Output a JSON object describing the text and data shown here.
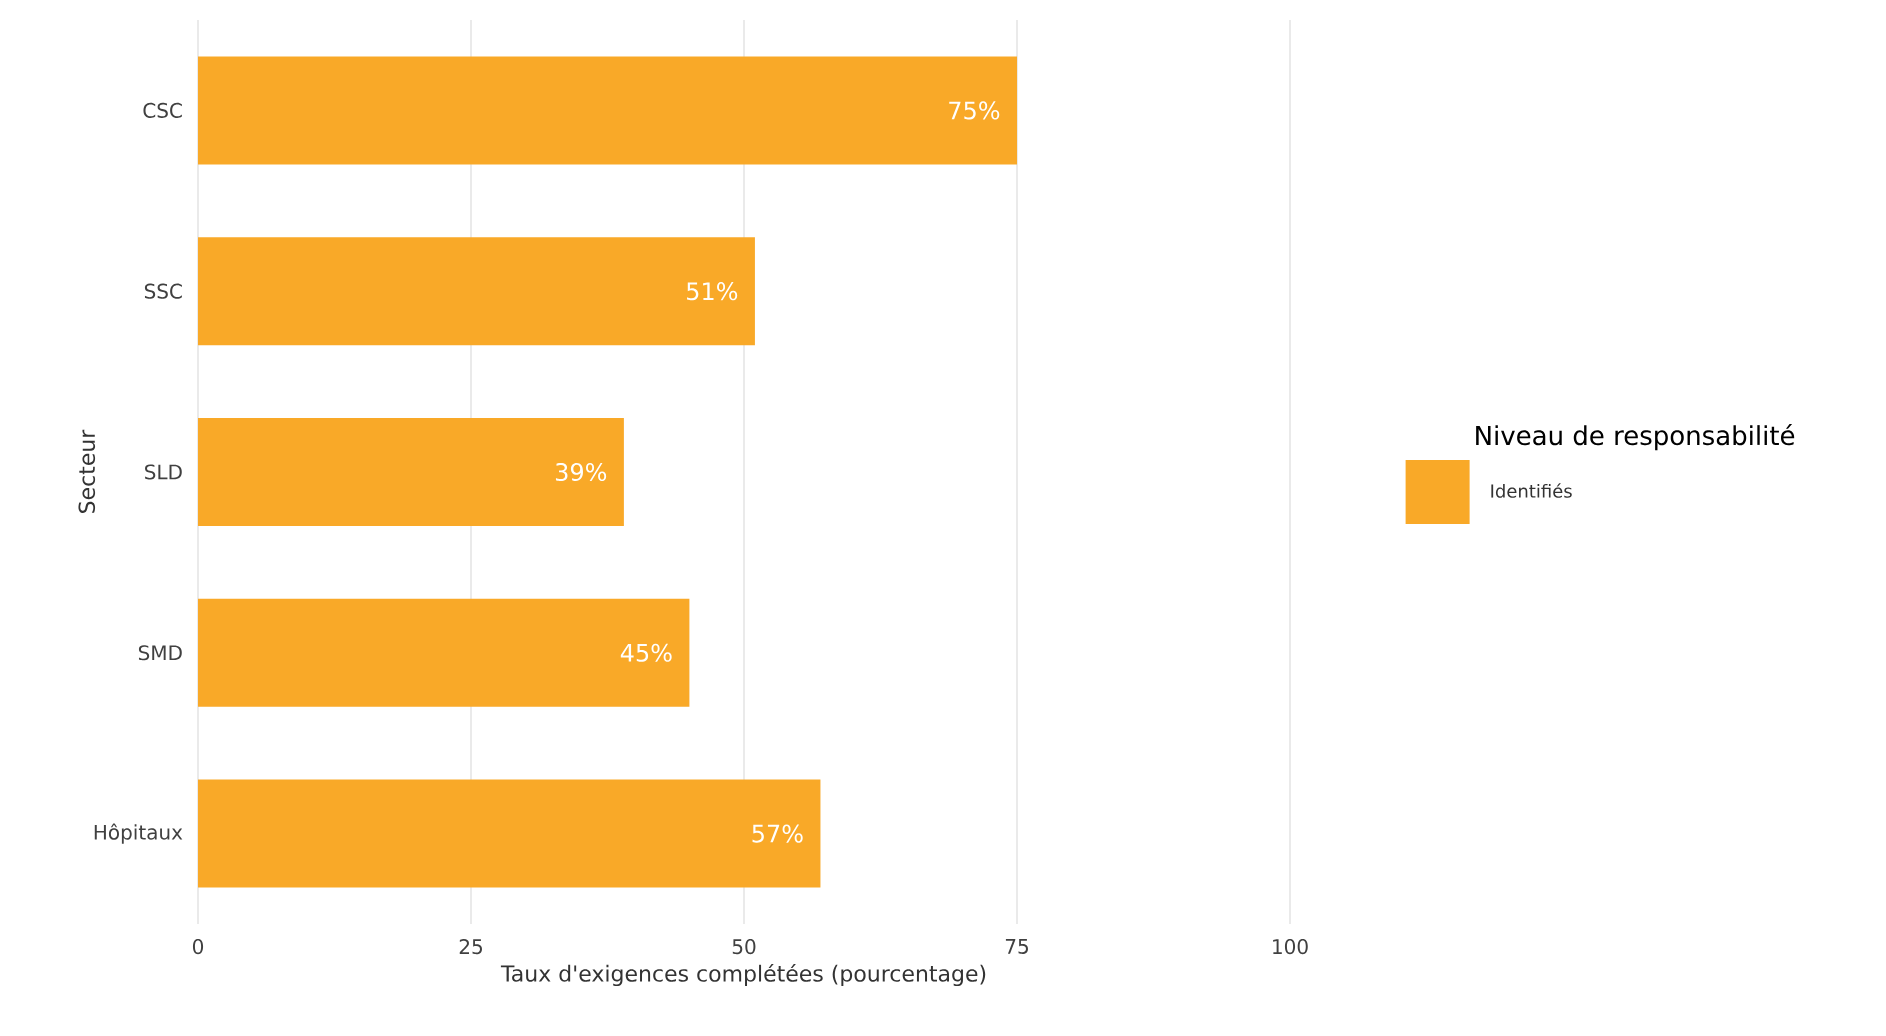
{
  "chart_data": {
    "type": "bar",
    "orientation": "horizontal",
    "categories": [
      "CSC",
      "SSC",
      "SLD",
      "SMD",
      "Hôpitaux"
    ],
    "series": [
      {
        "name": "Identifiés",
        "color": "#f9a928",
        "values": [
          75,
          51,
          39,
          45,
          57
        ],
        "value_labels": [
          "75%",
          "51%",
          "39%",
          "45%",
          "57%"
        ]
      }
    ],
    "xlim": [
      0,
      100
    ],
    "xticks": [
      0,
      25,
      50,
      75,
      100
    ],
    "xlabel": "Taux d'exigences complétées (pourcentage)",
    "ylabel": "Secteur",
    "legend_title": "Niveau de responsabilité",
    "legend": "right",
    "grid": "x"
  }
}
